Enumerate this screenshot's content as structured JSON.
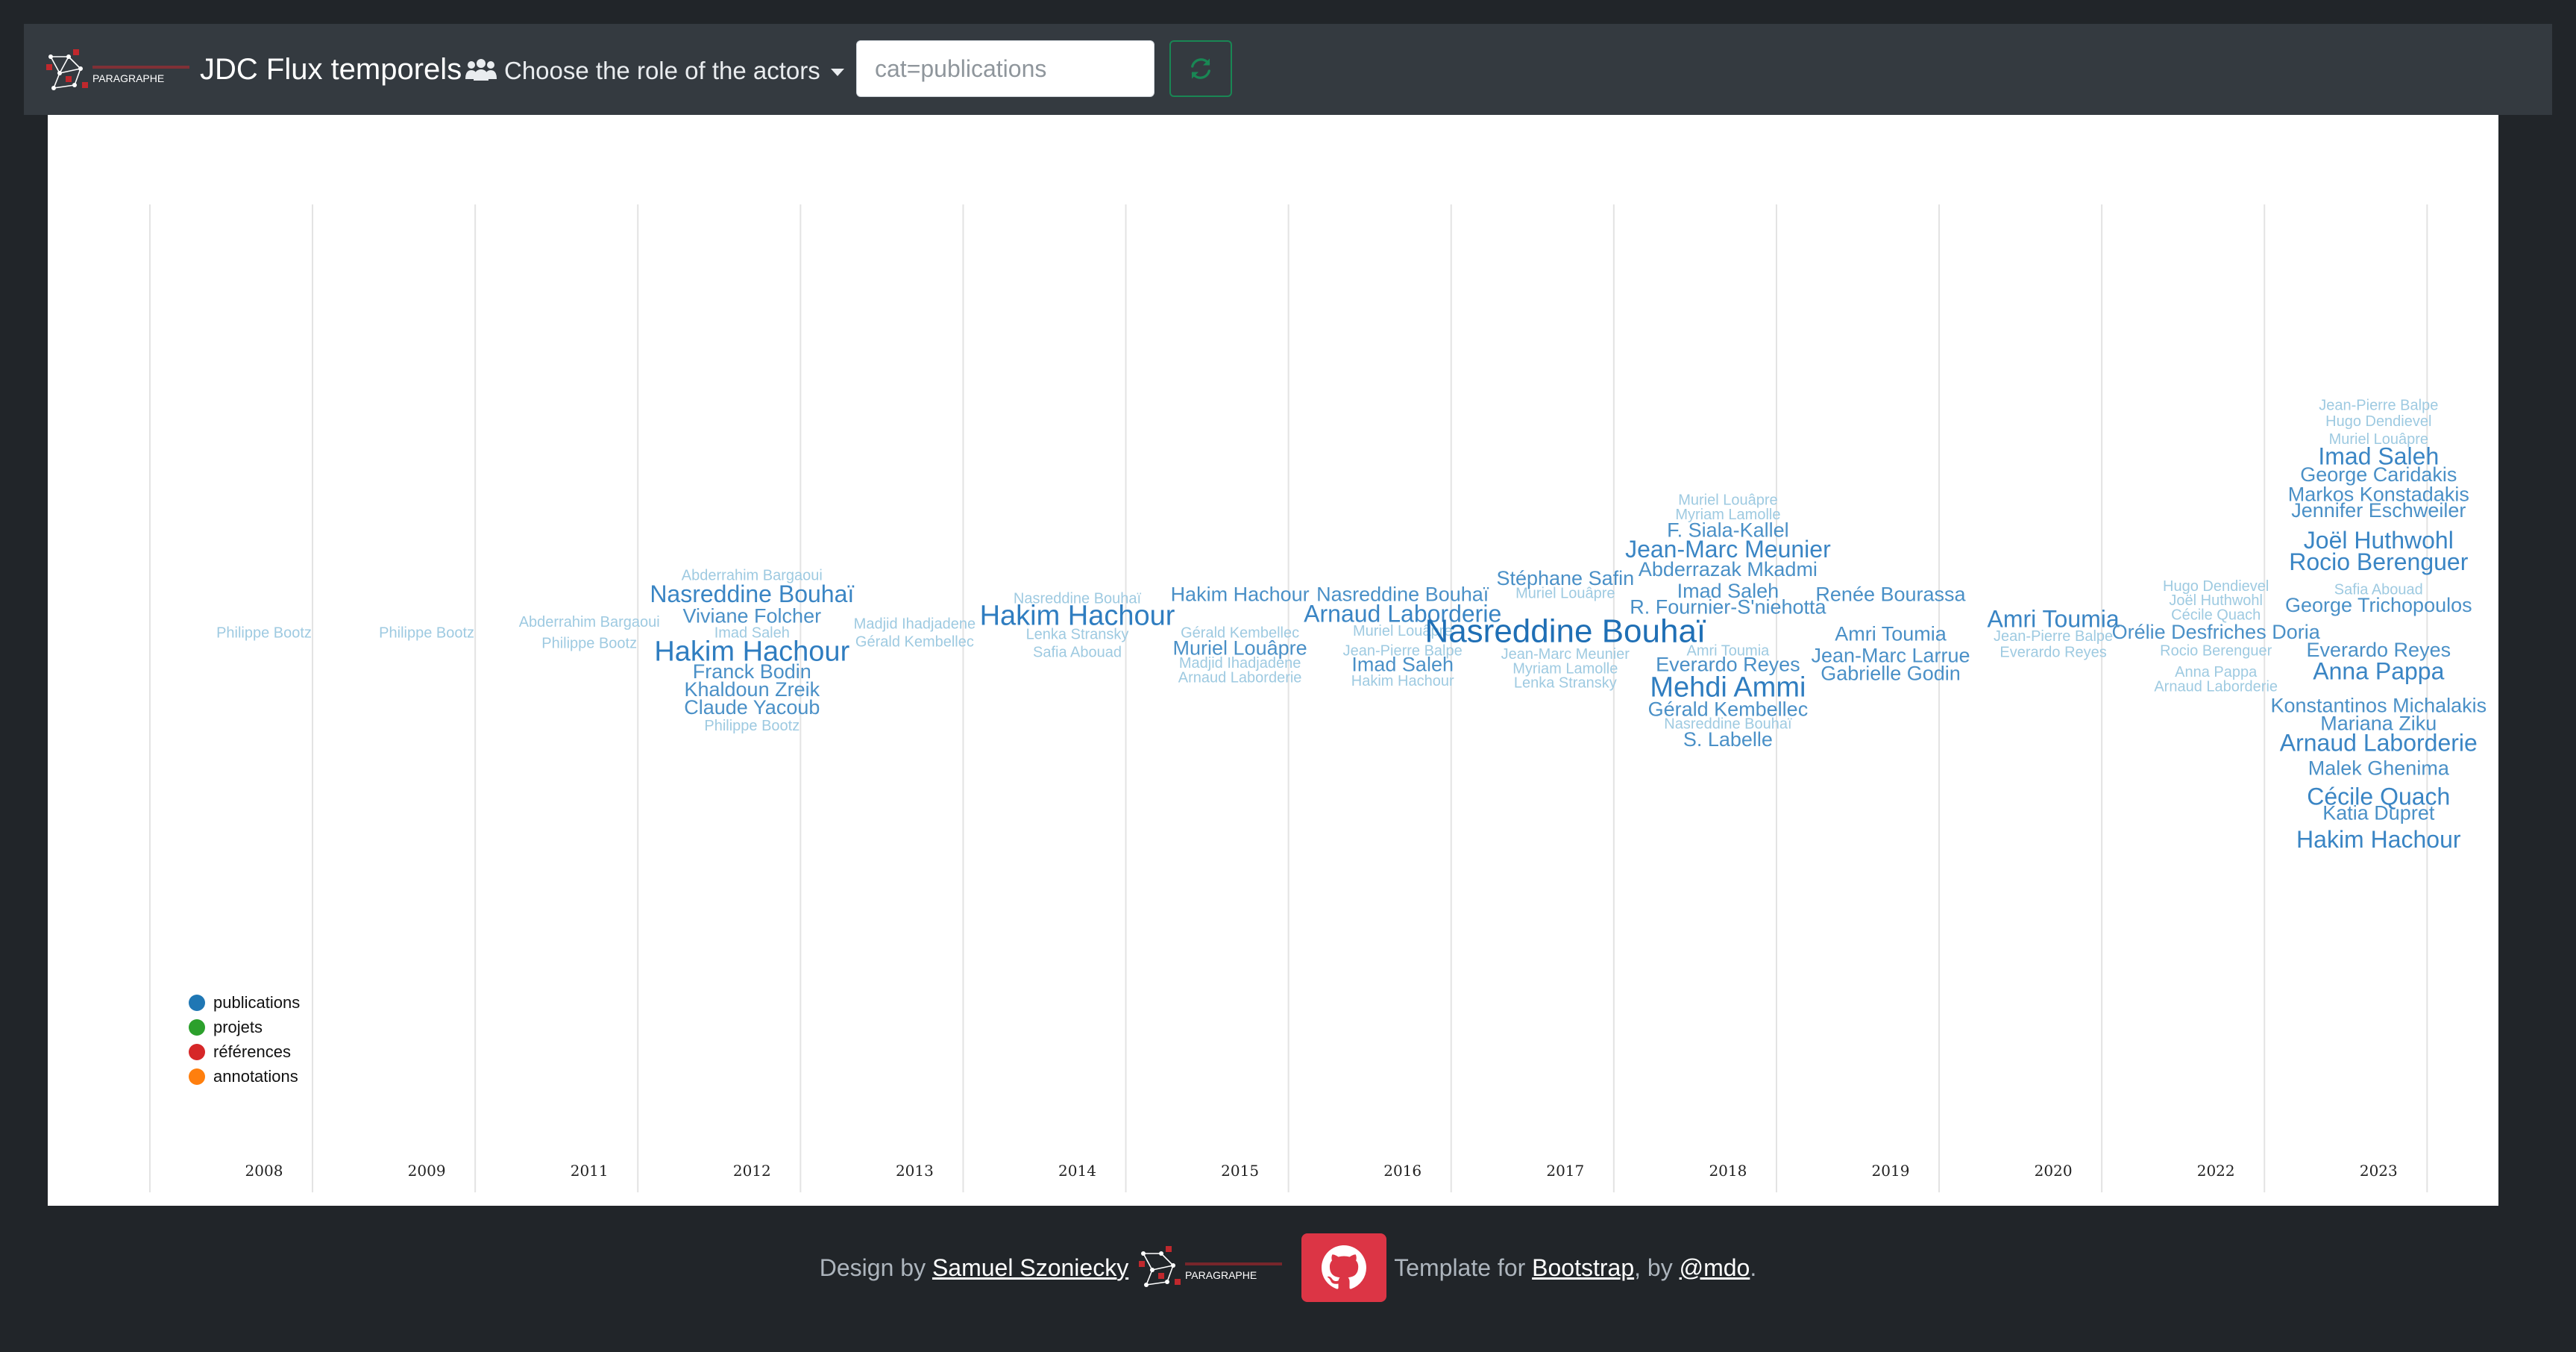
{
  "navbar": {
    "brand": {
      "title": "JDC Flux temporels",
      "logo_text": "PARAGRAPHE"
    },
    "role_dropdown": {
      "label": "Choose the role of the actors"
    },
    "query": {
      "placeholder": "cat=publications",
      "value": ""
    },
    "refresh": {
      "icon": "refresh-icon",
      "color": "#198754"
    }
  },
  "chart_data": {
    "type": "streamgraph-wordcloud",
    "categories": [
      "2008",
      "2009",
      "2011",
      "2012",
      "2013",
      "2014",
      "2015",
      "2016",
      "2017",
      "2018",
      "2019",
      "2020",
      "2022",
      "2023"
    ],
    "legend": {
      "position": "bottom-left",
      "items": [
        {
          "name": "publications",
          "color": "#1f77b4"
        },
        {
          "name": "projets",
          "color": "#2ca02c"
        },
        {
          "name": "références",
          "color": "#d62728"
        },
        {
          "name": "annotations",
          "color": "#ff7f0e"
        }
      ]
    },
    "words": [
      {
        "year": "2008",
        "text": "Philippe Bootz",
        "weight": 1,
        "rank": 0
      },
      {
        "year": "2009",
        "text": "Philippe Bootz",
        "weight": 1,
        "rank": 0
      },
      {
        "year": "2011",
        "text": "Abderrahim Bargaoui",
        "weight": 1,
        "rank": -0.6
      },
      {
        "year": "2011",
        "text": "Philippe Bootz",
        "weight": 1,
        "rank": 0.6
      },
      {
        "year": "2012",
        "text": "Abderrahim Bargaoui",
        "weight": 1,
        "rank": -3.2
      },
      {
        "year": "2012",
        "text": "Nasreddine Bouhaï",
        "weight": 3,
        "rank": -2.1
      },
      {
        "year": "2012",
        "text": "Viviane Folcher",
        "weight": 2,
        "rank": -0.9
      },
      {
        "year": "2012",
        "text": "Imad Saleh",
        "weight": 1,
        "rank": 0
      },
      {
        "year": "2012",
        "text": "Hakim Hachour",
        "weight": 4,
        "rank": 1.1
      },
      {
        "year": "2012",
        "text": "Franck Bodin",
        "weight": 2,
        "rank": 2.2
      },
      {
        "year": "2012",
        "text": "Khaldoun Zreik",
        "weight": 2,
        "rank": 3.2
      },
      {
        "year": "2012",
        "text": "Claude Yacoub",
        "weight": 2,
        "rank": 4.2
      },
      {
        "year": "2012",
        "text": "Philippe Bootz",
        "weight": 1,
        "rank": 5.2
      },
      {
        "year": "2013",
        "text": "Madjid Ihadjadene",
        "weight": 1,
        "rank": -0.5
      },
      {
        "year": "2013",
        "text": "Gérald Kembellec",
        "weight": 1,
        "rank": 0.5
      },
      {
        "year": "2014",
        "text": "Nasreddine Bouhaï",
        "weight": 1,
        "rank": -1.9
      },
      {
        "year": "2014",
        "text": "Hakim Hachour",
        "weight": 4,
        "rank": -0.9
      },
      {
        "year": "2014",
        "text": "Lenka Stransky",
        "weight": 1,
        "rank": 0.1
      },
      {
        "year": "2014",
        "text": "Safia Abouad",
        "weight": 1,
        "rank": 1.1
      },
      {
        "year": "2015",
        "text": "Hakim Hachour",
        "weight": 2,
        "rank": -2.1
      },
      {
        "year": "2015",
        "text": "Gérald Kembellec",
        "weight": 1,
        "rank": 0
      },
      {
        "year": "2015",
        "text": "Muriel Louâpre",
        "weight": 2,
        "rank": 0.9
      },
      {
        "year": "2015",
        "text": "Madjid Ihadjadene",
        "weight": 1,
        "rank": 1.7
      },
      {
        "year": "2015",
        "text": "Arnaud Laborderie",
        "weight": 1,
        "rank": 2.5
      },
      {
        "year": "2016",
        "text": "Nasreddine Bouhaï",
        "weight": 2,
        "rank": -2.1
      },
      {
        "year": "2016",
        "text": "Arnaud Laborderie",
        "weight": 3,
        "rank": -1.0
      },
      {
        "year": "2016",
        "text": "Muriel Louâpre",
        "weight": 1,
        "rank": -0.1
      },
      {
        "year": "2016",
        "text": "Jean-Pierre Balpe",
        "weight": 1,
        "rank": 1.0
      },
      {
        "year": "2016",
        "text": "Imad Saleh",
        "weight": 2,
        "rank": 1.8
      },
      {
        "year": "2016",
        "text": "Hakim Hachour",
        "weight": 1,
        "rank": 2.7
      },
      {
        "year": "2017",
        "text": "Stéphane Safin",
        "weight": 2,
        "rank": -3.0
      },
      {
        "year": "2017",
        "text": "Muriel Louâpre",
        "weight": 1,
        "rank": -2.2
      },
      {
        "year": "2017",
        "text": "Nasreddine Bouhaï",
        "weight": 5,
        "rank": 0
      },
      {
        "year": "2017",
        "text": "Jean-Marc Meunier",
        "weight": 1,
        "rank": 1.2
      },
      {
        "year": "2017",
        "text": "Myriam Lamolle",
        "weight": 1,
        "rank": 2.0
      },
      {
        "year": "2017",
        "text": "Lenka Stransky",
        "weight": 1,
        "rank": 2.8
      },
      {
        "year": "2018",
        "text": "Muriel Louâpre",
        "weight": 1,
        "rank": -7.4
      },
      {
        "year": "2018",
        "text": "Myriam Lamolle",
        "weight": 1,
        "rank": -6.6
      },
      {
        "year": "2018",
        "text": "F. Siala-Kallel",
        "weight": 2,
        "rank": -5.7
      },
      {
        "year": "2018",
        "text": "Jean-Marc Meunier",
        "weight": 3,
        "rank": -4.6
      },
      {
        "year": "2018",
        "text": "Abderrazak Mkadmi",
        "weight": 2,
        "rank": -3.5
      },
      {
        "year": "2018",
        "text": "Imad Saleh",
        "weight": 2,
        "rank": -2.3
      },
      {
        "year": "2018",
        "text": "R. Fournier-S'niehotta",
        "weight": 2,
        "rank": -1.4
      },
      {
        "year": "2018",
        "text": "Amri Toumia",
        "weight": 1,
        "rank": 1.0
      },
      {
        "year": "2018",
        "text": "Everardo Reyes",
        "weight": 2,
        "rank": 1.8
      },
      {
        "year": "2018",
        "text": "Mehdi Ammi",
        "weight": 4,
        "rank": 3.1
      },
      {
        "year": "2018",
        "text": "Gérald Kembellec",
        "weight": 2,
        "rank": 4.3
      },
      {
        "year": "2018",
        "text": "Nasreddine Bouhaï",
        "weight": 1,
        "rank": 5.1
      },
      {
        "year": "2018",
        "text": "S. Labelle",
        "weight": 2,
        "rank": 6.0
      },
      {
        "year": "2019",
        "text": "Renée Bourassa",
        "weight": 2,
        "rank": -2.1
      },
      {
        "year": "2019",
        "text": "Amri Toumia",
        "weight": 2,
        "rank": 0.1
      },
      {
        "year": "2019",
        "text": "Jean-Marc Larrue",
        "weight": 2,
        "rank": 1.3
      },
      {
        "year": "2019",
        "text": "Gabrielle Godin",
        "weight": 2,
        "rank": 2.3
      },
      {
        "year": "2020",
        "text": "Amri Toumia",
        "weight": 3,
        "rank": -0.7
      },
      {
        "year": "2020",
        "text": "Jean-Pierre Balpe",
        "weight": 1,
        "rank": 0.2
      },
      {
        "year": "2020",
        "text": "Everardo Reyes",
        "weight": 1,
        "rank": 1.1
      },
      {
        "year": "2022",
        "text": "Hugo Dendievel",
        "weight": 1,
        "rank": -2.6
      },
      {
        "year": "2022",
        "text": "Joël Huthwohl",
        "weight": 1,
        "rank": -1.8
      },
      {
        "year": "2022",
        "text": "Cécile Quach",
        "weight": 1,
        "rank": -1.0
      },
      {
        "year": "2022",
        "text": "Orélie Desfriches Doria",
        "weight": 2,
        "rank": 0
      },
      {
        "year": "2022",
        "text": "Rocio Berenguer",
        "weight": 1,
        "rank": 1.0
      },
      {
        "year": "2022",
        "text": "Anna Pappa",
        "weight": 1,
        "rank": 2.2
      },
      {
        "year": "2022",
        "text": "Arnaud Laborderie",
        "weight": 1,
        "rank": 3.0
      },
      {
        "year": "2023",
        "text": "Jean-Pierre Balpe",
        "weight": 1,
        "rank": -12.7
      },
      {
        "year": "2023",
        "text": "Hugo Dendievel",
        "weight": 1,
        "rank": -11.8
      },
      {
        "year": "2023",
        "text": "Muriel Louâpre",
        "weight": 1,
        "rank": -10.8
      },
      {
        "year": "2023",
        "text": "Imad Saleh",
        "weight": 3,
        "rank": -9.8
      },
      {
        "year": "2023",
        "text": "George Caridakis",
        "weight": 2,
        "rank": -8.8
      },
      {
        "year": "2023",
        "text": "Markos Konstadakis",
        "weight": 2,
        "rank": -7.7
      },
      {
        "year": "2023",
        "text": "Jennifer Eschweiler",
        "weight": 2,
        "rank": -6.8
      },
      {
        "year": "2023",
        "text": "Joël Huthwohl",
        "weight": 3,
        "rank": -5.1
      },
      {
        "year": "2023",
        "text": "Rocio Berenguer",
        "weight": 3,
        "rank": -3.9
      },
      {
        "year": "2023",
        "text": "Safia Abouad",
        "weight": 1,
        "rank": -2.4
      },
      {
        "year": "2023",
        "text": "George Trichopoulos",
        "weight": 2,
        "rank": -1.5
      },
      {
        "year": "2023",
        "text": "Everardo Reyes",
        "weight": 2,
        "rank": 1.0
      },
      {
        "year": "2023",
        "text": "Anna Pappa",
        "weight": 3,
        "rank": 2.2
      },
      {
        "year": "2023",
        "text": "Konstantinos Michalakis",
        "weight": 2,
        "rank": 4.1
      },
      {
        "year": "2023",
        "text": "Mariana Ziku",
        "weight": 2,
        "rank": 5.1
      },
      {
        "year": "2023",
        "text": "Arnaud Laborderie",
        "weight": 3,
        "rank": 6.2
      },
      {
        "year": "2023",
        "text": "Malek Ghenima",
        "weight": 2,
        "rank": 7.6
      },
      {
        "year": "2023",
        "text": "Cécile Quach",
        "weight": 3,
        "rank": 9.2
      },
      {
        "year": "2023",
        "text": "Katia Dupret",
        "weight": 2,
        "rank": 10.1
      },
      {
        "year": "2023",
        "text": "Hakim Hachour",
        "weight": 3,
        "rank": 11.6
      }
    ]
  },
  "footer": {
    "design_by": "Design by",
    "author": "Samuel Szoniecky",
    "logo_text": "PARAGRAPHE",
    "template_for": "Template for",
    "bootstrap": "Bootstrap",
    "by": ", by",
    "mdo": "@mdo",
    "period": ".",
    "github_icon": "github-icon"
  }
}
